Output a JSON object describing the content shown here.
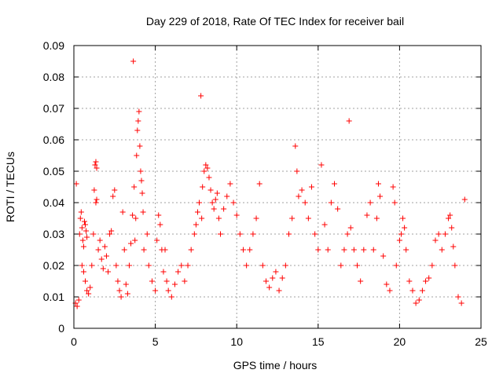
{
  "chart_data": {
    "type": "scatter",
    "title": "Day 229 of 2018, Rate Of TEC Index for receiver bail",
    "xlabel": "GPS time / hours",
    "ylabel": "ROTI / TECUs",
    "xlim": [
      0,
      25
    ],
    "ylim": [
      0,
      0.09
    ],
    "xticks": [
      0,
      5,
      10,
      15,
      20,
      25
    ],
    "yticks": [
      0,
      0.01,
      0.02,
      0.03,
      0.04,
      0.05,
      0.06,
      0.07,
      0.08,
      0.09
    ],
    "xtick_labels": [
      "0",
      "5",
      "10",
      "15",
      "20",
      "25"
    ],
    "ytick_labels": [
      "0",
      "0.01",
      "0.02",
      "0.03",
      "0.04",
      "0.05",
      "0.06",
      "0.07",
      "0.08",
      "0.09"
    ],
    "grid": true,
    "marker": "plus",
    "color": "#ff0000",
    "series": [
      {
        "points": [
          [
            0.1,
            0.008
          ],
          [
            0.2,
            0.007
          ],
          [
            0.3,
            0.009
          ],
          [
            0.15,
            0.046
          ],
          [
            0.35,
            0.03
          ],
          [
            0.4,
            0.035
          ],
          [
            0.45,
            0.037
          ],
          [
            0.5,
            0.032
          ],
          [
            0.55,
            0.028
          ],
          [
            0.6,
            0.026
          ],
          [
            0.65,
            0.034
          ],
          [
            0.7,
            0.033
          ],
          [
            0.75,
            0.031
          ],
          [
            0.8,
            0.029
          ],
          [
            0.5,
            0.02
          ],
          [
            0.6,
            0.018
          ],
          [
            0.7,
            0.015
          ],
          [
            0.8,
            0.012
          ],
          [
            0.9,
            0.011
          ],
          [
            1.0,
            0.013
          ],
          [
            1.1,
            0.02
          ],
          [
            1.2,
            0.03
          ],
          [
            1.25,
            0.044
          ],
          [
            1.3,
            0.052
          ],
          [
            1.35,
            0.053
          ],
          [
            1.4,
            0.051
          ],
          [
            1.4,
            0.041
          ],
          [
            1.35,
            0.04
          ],
          [
            1.5,
            0.025
          ],
          [
            1.6,
            0.028
          ],
          [
            1.7,
            0.022
          ],
          [
            1.8,
            0.019
          ],
          [
            1.9,
            0.026
          ],
          [
            2.0,
            0.023
          ],
          [
            2.1,
            0.018
          ],
          [
            2.2,
            0.03
          ],
          [
            2.3,
            0.031
          ],
          [
            2.4,
            0.042
          ],
          [
            2.5,
            0.044
          ],
          [
            2.6,
            0.02
          ],
          [
            2.7,
            0.015
          ],
          [
            2.8,
            0.012
          ],
          [
            2.9,
            0.01
          ],
          [
            3.0,
            0.037
          ],
          [
            3.1,
            0.025
          ],
          [
            3.2,
            0.014
          ],
          [
            3.3,
            0.011
          ],
          [
            3.4,
            0.02
          ],
          [
            3.5,
            0.027
          ],
          [
            3.6,
            0.036
          ],
          [
            3.65,
            0.085
          ],
          [
            3.7,
            0.045
          ],
          [
            3.75,
            0.028
          ],
          [
            3.8,
            0.035
          ],
          [
            3.85,
            0.055
          ],
          [
            3.9,
            0.063
          ],
          [
            3.95,
            0.066
          ],
          [
            4.0,
            0.069
          ],
          [
            4.05,
            0.058
          ],
          [
            4.1,
            0.05
          ],
          [
            4.15,
            0.047
          ],
          [
            4.2,
            0.043
          ],
          [
            4.25,
            0.037
          ],
          [
            4.3,
            0.025
          ],
          [
            4.5,
            0.03
          ],
          [
            4.6,
            0.02
          ],
          [
            4.8,
            0.015
          ],
          [
            5.0,
            0.012
          ],
          [
            5.1,
            0.028
          ],
          [
            5.2,
            0.036
          ],
          [
            5.3,
            0.033
          ],
          [
            5.4,
            0.025
          ],
          [
            5.5,
            0.018
          ],
          [
            5.6,
            0.025
          ],
          [
            5.7,
            0.015
          ],
          [
            5.8,
            0.012
          ],
          [
            6.0,
            0.01
          ],
          [
            6.2,
            0.014
          ],
          [
            6.4,
            0.018
          ],
          [
            6.6,
            0.02
          ],
          [
            6.8,
            0.015
          ],
          [
            7.0,
            0.02
          ],
          [
            7.2,
            0.025
          ],
          [
            7.4,
            0.03
          ],
          [
            7.5,
            0.033
          ],
          [
            7.6,
            0.037
          ],
          [
            7.7,
            0.04
          ],
          [
            7.8,
            0.074
          ],
          [
            7.85,
            0.035
          ],
          [
            7.9,
            0.045
          ],
          [
            8.0,
            0.05
          ],
          [
            8.1,
            0.052
          ],
          [
            8.2,
            0.051
          ],
          [
            8.3,
            0.048
          ],
          [
            8.4,
            0.044
          ],
          [
            8.5,
            0.04
          ],
          [
            8.6,
            0.038
          ],
          [
            8.7,
            0.041
          ],
          [
            8.8,
            0.043
          ],
          [
            8.9,
            0.035
          ],
          [
            9.0,
            0.03
          ],
          [
            9.2,
            0.038
          ],
          [
            9.4,
            0.042
          ],
          [
            9.6,
            0.046
          ],
          [
            9.8,
            0.04
          ],
          [
            10.0,
            0.036
          ],
          [
            10.2,
            0.03
          ],
          [
            10.4,
            0.025
          ],
          [
            10.6,
            0.02
          ],
          [
            10.8,
            0.025
          ],
          [
            11.0,
            0.03
          ],
          [
            11.2,
            0.035
          ],
          [
            11.4,
            0.046
          ],
          [
            11.6,
            0.02
          ],
          [
            11.8,
            0.015
          ],
          [
            12.0,
            0.013
          ],
          [
            12.2,
            0.016
          ],
          [
            12.4,
            0.018
          ],
          [
            12.6,
            0.012
          ],
          [
            12.8,
            0.016
          ],
          [
            13.0,
            0.02
          ],
          [
            13.2,
            0.03
          ],
          [
            13.4,
            0.035
          ],
          [
            13.6,
            0.058
          ],
          [
            13.7,
            0.05
          ],
          [
            13.8,
            0.042
          ],
          [
            14.0,
            0.044
          ],
          [
            14.2,
            0.04
          ],
          [
            14.4,
            0.035
          ],
          [
            14.6,
            0.045
          ],
          [
            14.8,
            0.03
          ],
          [
            15.0,
            0.025
          ],
          [
            15.2,
            0.052
          ],
          [
            15.4,
            0.033
          ],
          [
            15.6,
            0.025
          ],
          [
            15.8,
            0.04
          ],
          [
            16.0,
            0.046
          ],
          [
            16.2,
            0.038
          ],
          [
            16.4,
            0.02
          ],
          [
            16.6,
            0.025
          ],
          [
            16.8,
            0.03
          ],
          [
            16.9,
            0.066
          ],
          [
            17.0,
            0.032
          ],
          [
            17.2,
            0.025
          ],
          [
            17.4,
            0.02
          ],
          [
            17.6,
            0.015
          ],
          [
            17.8,
            0.025
          ],
          [
            18.0,
            0.036
          ],
          [
            18.2,
            0.04
          ],
          [
            18.4,
            0.025
          ],
          [
            18.6,
            0.035
          ],
          [
            18.7,
            0.046
          ],
          [
            18.8,
            0.042
          ],
          [
            19.0,
            0.023
          ],
          [
            19.2,
            0.014
          ],
          [
            19.4,
            0.012
          ],
          [
            19.6,
            0.045
          ],
          [
            19.7,
            0.04
          ],
          [
            19.8,
            0.02
          ],
          [
            20.0,
            0.028
          ],
          [
            20.1,
            0.03
          ],
          [
            20.2,
            0.035
          ],
          [
            20.3,
            0.032
          ],
          [
            20.4,
            0.025
          ],
          [
            20.6,
            0.015
          ],
          [
            20.8,
            0.012
          ],
          [
            21.0,
            0.008
          ],
          [
            21.2,
            0.009
          ],
          [
            21.4,
            0.012
          ],
          [
            21.6,
            0.015
          ],
          [
            21.8,
            0.016
          ],
          [
            22.0,
            0.02
          ],
          [
            22.2,
            0.028
          ],
          [
            22.4,
            0.03
          ],
          [
            22.6,
            0.025
          ],
          [
            22.8,
            0.03
          ],
          [
            23.0,
            0.035
          ],
          [
            23.1,
            0.036
          ],
          [
            23.2,
            0.032
          ],
          [
            23.3,
            0.026
          ],
          [
            23.4,
            0.02
          ],
          [
            23.6,
            0.01
          ],
          [
            23.8,
            0.008
          ],
          [
            24.0,
            0.041
          ]
        ]
      }
    ]
  }
}
